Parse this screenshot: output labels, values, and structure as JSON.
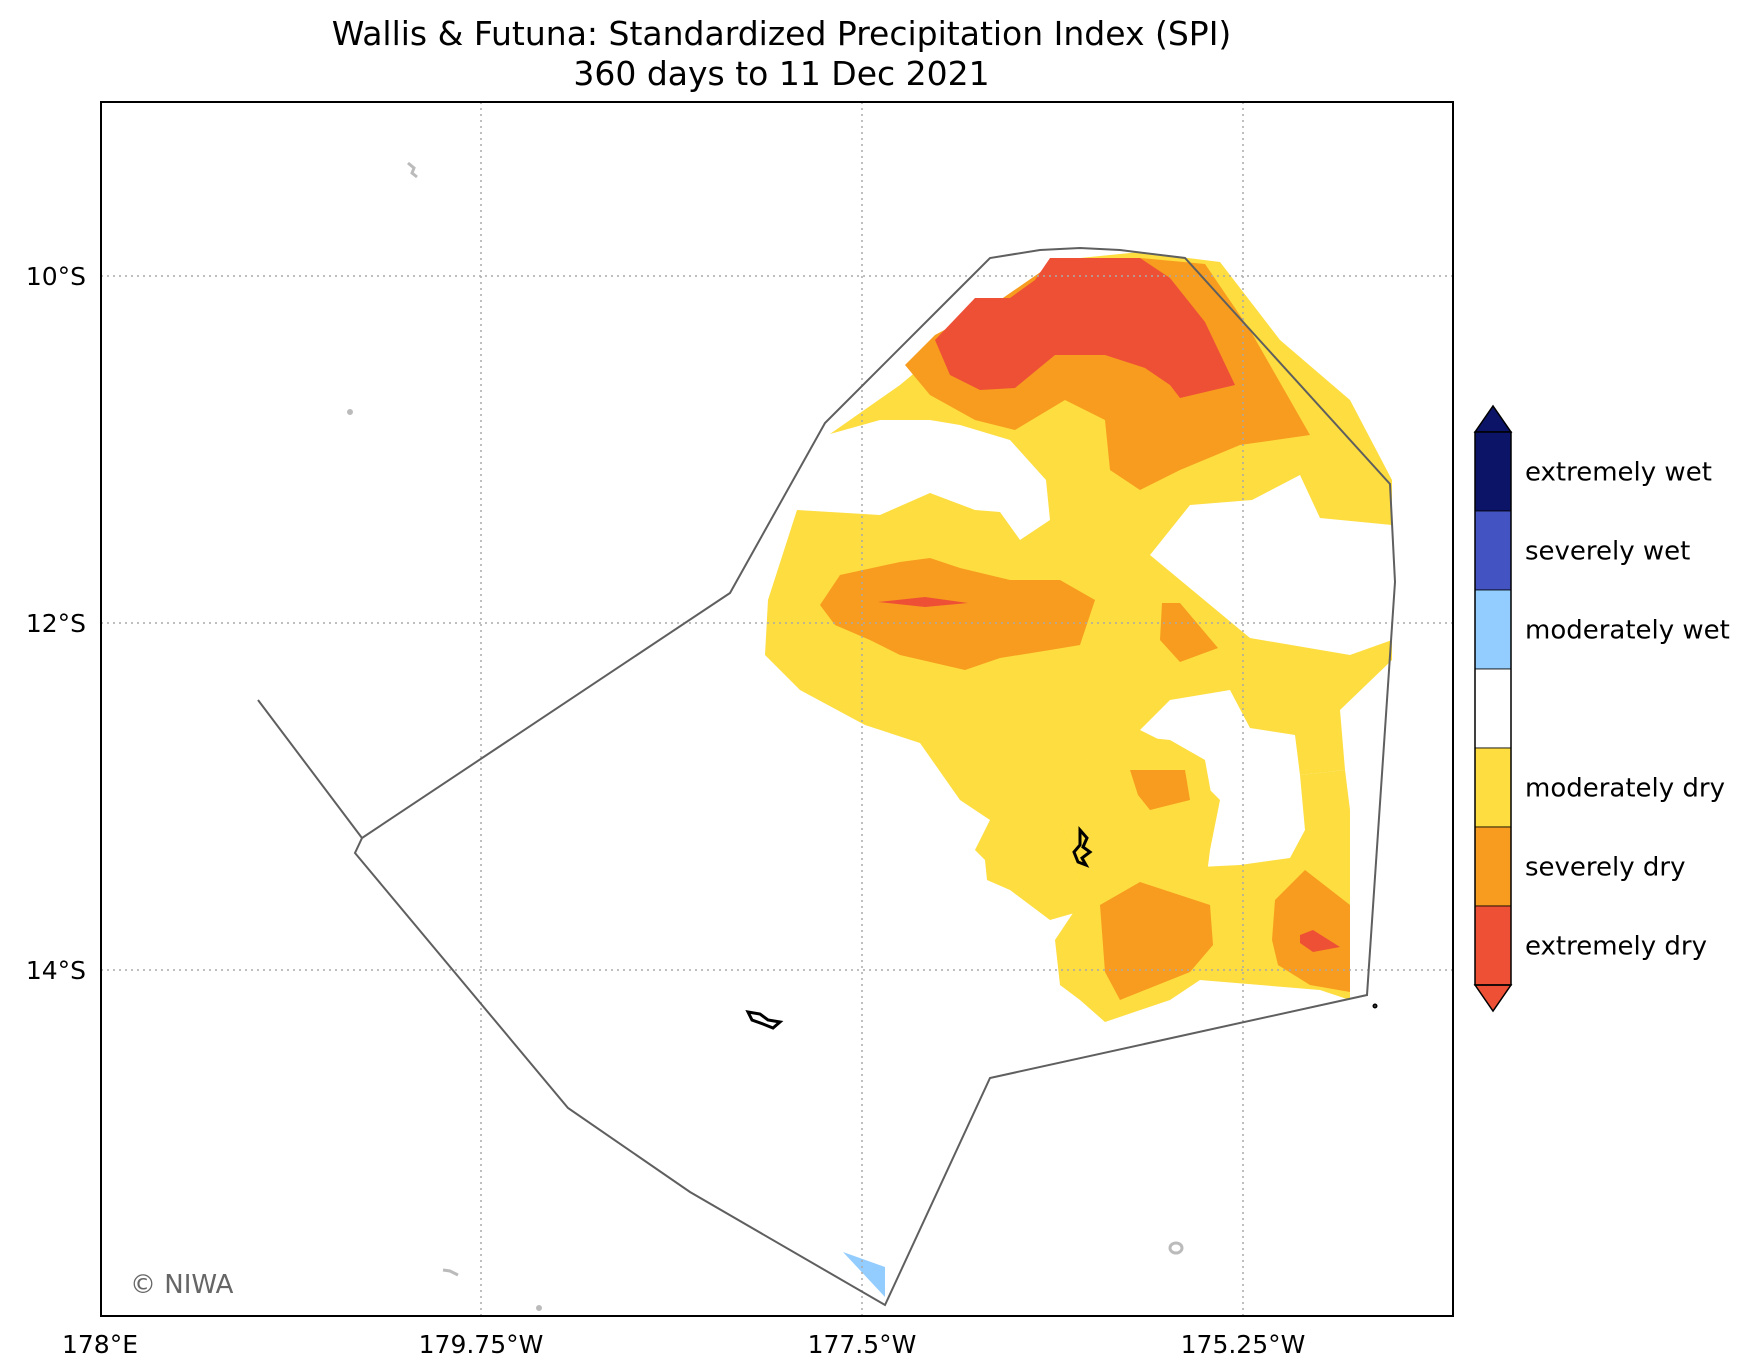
{
  "title": "Wallis & Futuna: Standardized Precipitation Index (SPI)",
  "subtitle": "360 days to 11 Dec 2021",
  "credit": "© NIWA",
  "x_ticks": [
    "178°E",
    "179.75°W",
    "177.5°W",
    "175.25°W"
  ],
  "y_ticks": [
    "10°S",
    "12°S",
    "14°S"
  ],
  "legend": {
    "classes": [
      {
        "label": "extremely wet",
        "color": "#0b1466"
      },
      {
        "label": "severely wet",
        "color": "#4353c2"
      },
      {
        "label": "moderately wet",
        "color": "#93cdff"
      },
      {
        "label": "",
        "color": "#ffffff"
      },
      {
        "label": "moderately dry",
        "color": "#fddd3f"
      },
      {
        "label": "severely dry",
        "color": "#f79c1f"
      },
      {
        "label": "extremely dry",
        "color": "#ee5036"
      }
    ],
    "extend_max_color": "#0b1466",
    "extend_min_color": "#ee5036"
  },
  "colors": {
    "eez_boundary": "#5f5f5f",
    "coastline": "#000000",
    "other_islands": "#bbbbbb",
    "gridlines": "#aaaaaa"
  }
}
